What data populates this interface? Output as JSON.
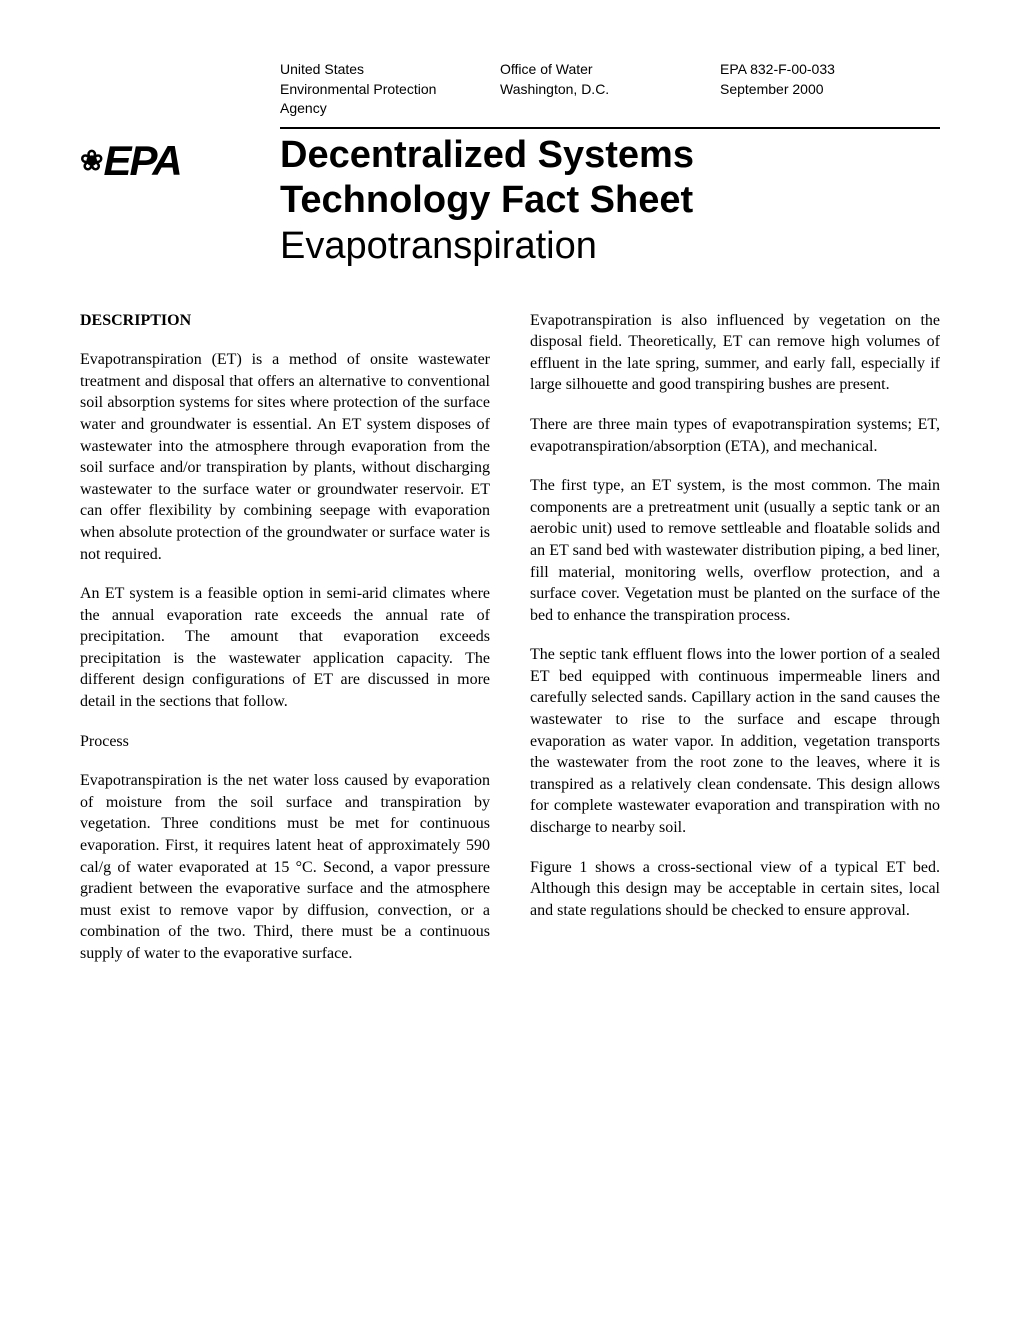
{
  "header": {
    "col1_line1": "United States",
    "col1_line2": "Environmental Protection",
    "col1_line3": "Agency",
    "col2_line1": "Office of Water",
    "col2_line2": "Washington, D.C.",
    "col3_line1": "EPA 832-F-00-033",
    "col3_line2": "September 2000"
  },
  "logo": {
    "icon": "❀",
    "text": "EPA"
  },
  "title": {
    "line1": "Decentralized Systems",
    "line2": "Technology Fact Sheet",
    "subtitle": "Evapotranspiration"
  },
  "left_column": {
    "heading": "DESCRIPTION",
    "para1": "Evapotranspiration (ET) is a method of onsite wastewater treatment and disposal that offers an alternative to conventional soil absorption systems for sites where protection of the surface water and groundwater is essential. An ET system disposes of wastewater into the atmosphere through evaporation from the soil surface and/or transpiration by plants, without discharging wastewater to the surface water or groundwater reservoir. ET can offer flexibility by combining seepage with evaporation when absolute protection of the groundwater or surface water is not required.",
    "para2": "An ET system is a feasible option in semi-arid climates where the annual evaporation rate exceeds the annual rate of precipitation. The amount that evaporation exceeds precipitation is the wastewater application capacity. The different design configurations of ET are discussed in more detail in the sections that follow.",
    "subheading": "Process",
    "para3": "Evapotranspiration is the net water loss caused by evaporation of moisture from the soil surface and transpiration by vegetation. Three conditions must be met for continuous evaporation. First, it requires latent heat of approximately 590 cal/g of water evaporated at 15 °C. Second, a vapor pressure gradient between the evaporative surface and the atmosphere must exist to remove vapor by diffusion, convection, or a combination of the two. Third, there must be a continuous supply of water to the evaporative surface."
  },
  "right_column": {
    "para1": "Evapotranspiration is also influenced by vegetation on the disposal field. Theoretically, ET can remove high volumes of effluent in the late spring, summer, and early fall, especially if large silhouette and good transpiring bushes are present.",
    "para2": "There are three main types of evapotranspiration systems; ET, evapotranspiration/absorption (ETA), and mechanical.",
    "para3": "The first type, an ET system, is the most common. The main components are a pretreatment unit (usually a septic tank or an aerobic unit) used to remove settleable and floatable solids and an ET sand bed with wastewater distribution piping, a bed liner, fill material, monitoring wells, overflow protection, and a surface cover. Vegetation must be planted on the surface of the bed to enhance the transpiration process.",
    "para4": "The septic tank effluent flows into the lower portion of a sealed ET bed equipped with continuous impermeable liners and carefully selected sands. Capillary action in the sand causes the wastewater to rise to the surface and escape through evaporation as water vapor. In addition, vegetation transports the wastewater from the root zone to the leaves, where it is transpired as a relatively clean condensate. This design allows for complete wastewater evaporation and transpiration with no discharge to nearby soil.",
    "para5": "Figure 1 shows a cross-sectional view of a typical ET bed. Although this design may be acceptable in certain sites, local and state regulations should be checked to ensure approval."
  }
}
